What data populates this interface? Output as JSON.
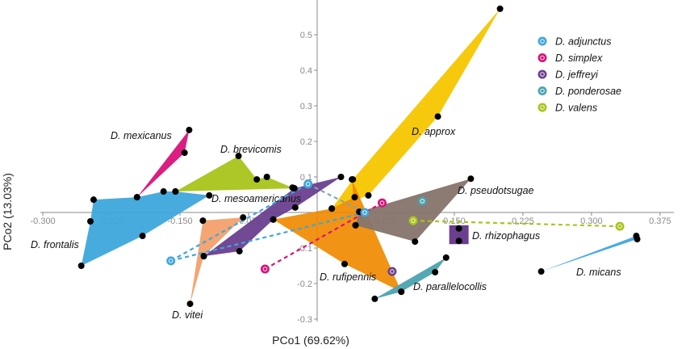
{
  "chart_data": {
    "type": "scatter",
    "title": "",
    "xlabel": "PCo1 (69.62%)",
    "ylabel": "PCo2 (13.03%)",
    "xlim": [
      -0.31,
      0.39
    ],
    "ylim": [
      -0.3,
      0.59
    ],
    "x_ticks": [
      "-0.300",
      "-0.225",
      "-0.150",
      "-0.075",
      "0.075",
      "0.150",
      "0.225",
      "0.300",
      "0.375"
    ],
    "x_tick_values": [
      -0.3,
      -0.225,
      -0.15,
      -0.075,
      0.075,
      0.15,
      0.225,
      0.3,
      0.375
    ],
    "y_ticks": [
      "0.5",
      "0.4",
      "0.3",
      "0.2",
      "0.1",
      "-0.1",
      "-0.2",
      "-0.3"
    ],
    "y_tick_values": [
      0.5,
      0.4,
      0.3,
      0.2,
      0.1,
      -0.1,
      -0.2,
      -0.3
    ],
    "grid": false,
    "legend_position": "top-right",
    "hulls": [
      {
        "label": "D. frontalis",
        "color": "#3ea6dc",
        "points": [
          [
            -0.2445,
            0.036
          ],
          [
            -0.197,
            0.043
          ],
          [
            -0.168,
            0.059
          ],
          [
            -0.155,
            0.059
          ],
          [
            -0.118,
            0.048
          ],
          [
            -0.191,
            -0.066
          ],
          [
            -0.258,
            -0.15
          ],
          [
            -0.248,
            -0.025
          ]
        ]
      },
      {
        "label": "D. mexicanus",
        "color": "#d8137a",
        "points": [
          [
            -0.197,
            0.043
          ],
          [
            -0.14,
            0.232
          ],
          [
            -0.145,
            0.168
          ]
        ]
      },
      {
        "label": "D. brevicomis",
        "color": "#a8c41a",
        "points": [
          [
            -0.155,
            0.059
          ],
          [
            -0.086,
            0.159
          ],
          [
            -0.066,
            0.093
          ],
          [
            -0.055,
            0.1
          ],
          [
            -0.027,
            0.07
          ],
          [
            -0.025,
            0.068
          ]
        ]
      },
      {
        "label": "D. vitei",
        "color": "#f2a16c",
        "points": [
          [
            -0.125,
            -0.023
          ],
          [
            -0.081,
            -0.014
          ],
          [
            -0.124,
            -0.123
          ],
          [
            -0.139,
            -0.257
          ]
        ]
      },
      {
        "label": "D. mesoamericanus",
        "color": "#6a3f8e",
        "points": [
          [
            -0.124,
            -0.123
          ],
          [
            -0.025,
            0.068
          ],
          [
            0.026,
            0.1
          ],
          [
            -0.024,
            0.014
          ],
          [
            -0.048,
            -0.02
          ],
          [
            -0.085,
            -0.109
          ]
        ]
      },
      {
        "label": "D. approx",
        "color": "#f7c600",
        "points": [
          [
            0.016,
            0.011
          ],
          [
            0.039,
            0.093
          ],
          [
            0.2,
            0.573
          ],
          [
            0.132,
            0.27
          ],
          [
            0.056,
            0.048
          ]
        ]
      },
      {
        "label": "D. rufipennis",
        "color": "#f08a00",
        "points": [
          [
            0.038,
            0.093
          ],
          [
            0.092,
            -0.223
          ],
          [
            0.03,
            -0.145
          ],
          [
            -0.048,
            -0.02
          ],
          [
            0.016,
            0.011
          ],
          [
            0.041,
            0.043
          ],
          [
            0.042,
            -0.036
          ]
        ]
      },
      {
        "label": "D. pseudotsugae",
        "color": "#85746c",
        "points": [
          [
            0.046,
            0.002
          ],
          [
            0.168,
            0.095
          ],
          [
            0.107,
            -0.082
          ],
          [
            0.042,
            -0.036
          ]
        ]
      },
      {
        "label": "D. rhizophagus",
        "color": "#6a3f8e",
        "points": [
          [
            0.155,
            -0.045
          ],
          [
            0.155,
            -0.08
          ]
        ]
      },
      {
        "label": "D. parallelocollis",
        "color": "#4aa3b0",
        "points": [
          [
            0.063,
            -0.243
          ],
          [
            0.092,
            -0.223
          ],
          [
            0.129,
            -0.168
          ],
          [
            0.141,
            -0.127
          ]
        ]
      },
      {
        "label": "D. micans",
        "color": "#3ea6dc",
        "points": [
          [
            0.245,
            -0.166
          ],
          [
            0.35,
            -0.075
          ],
          [
            0.349,
            -0.066
          ]
        ]
      }
    ],
    "centroid_series": [
      {
        "name": "D. adjunctus",
        "color": "#3ea6dc",
        "points": [
          [
            -0.16,
            -0.136
          ],
          [
            -0.01,
            0.08
          ],
          [
            0.052,
            0.0
          ]
        ],
        "links": [
          [
            0,
            1
          ],
          [
            0,
            2
          ]
        ]
      },
      {
        "name": "D. simplex",
        "color": "#d8137a",
        "points": [
          [
            -0.057,
            -0.159
          ],
          [
            0.071,
            0.027
          ]
        ],
        "links": [
          [
            0,
            1
          ]
        ]
      },
      {
        "name": "D. jeffreyi",
        "color": "#6a3f8e",
        "points": [
          [
            0.082,
            -0.166
          ]
        ],
        "links": []
      },
      {
        "name": "D. ponderosae",
        "color": "#4aa3b0",
        "points": [
          [
            0.115,
            0.032
          ]
        ],
        "links": []
      },
      {
        "name": "D. valens",
        "color": "#a8c41a",
        "points": [
          [
            0.105,
            -0.023
          ],
          [
            0.331,
            -0.039
          ]
        ],
        "links": [
          [
            0,
            1
          ]
        ]
      }
    ],
    "extra_links": [
      {
        "color": "#7fa7b3",
        "from": [
          -0.01,
          0.08
        ],
        "to": [
          0.052,
          0.0
        ]
      }
    ]
  }
}
